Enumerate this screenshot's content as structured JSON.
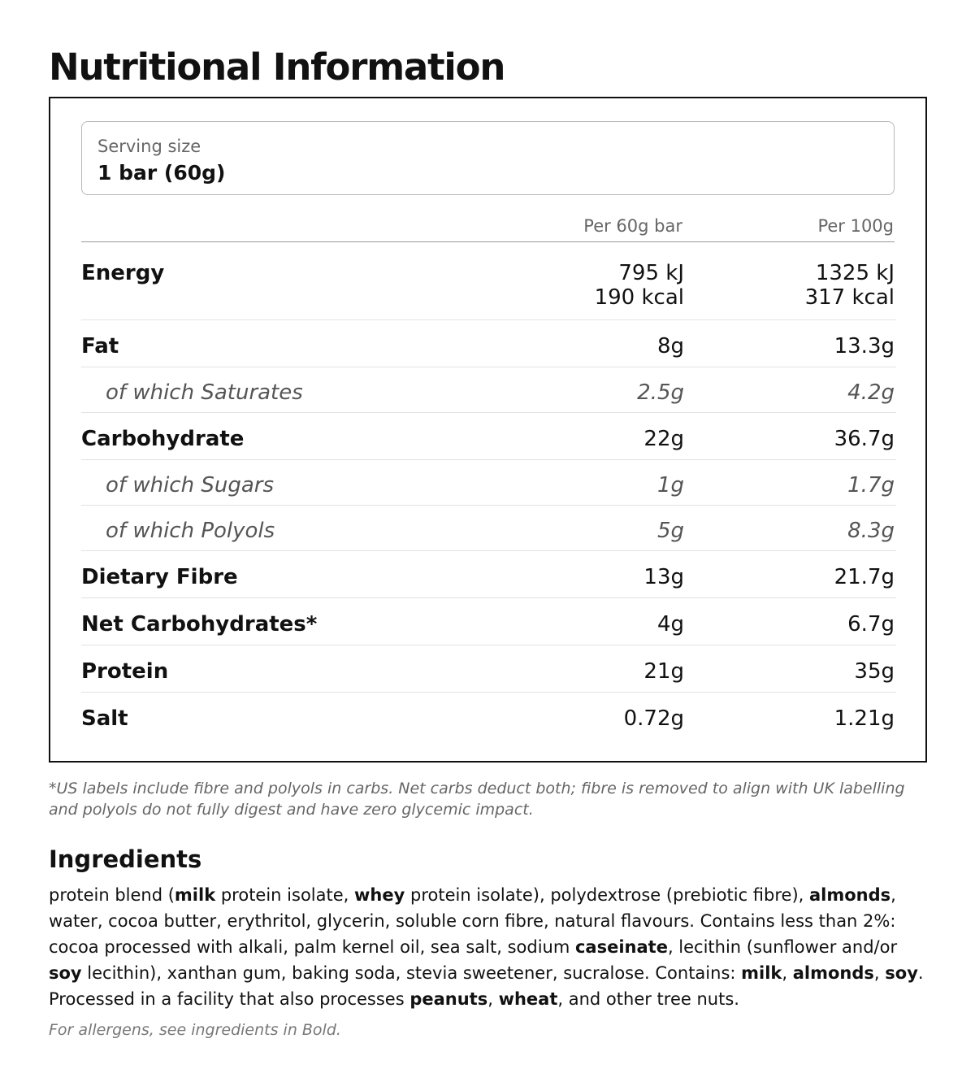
{
  "title": "Nutritional Information",
  "serving": {
    "label": "Serving size",
    "value": "1 bar (60g)"
  },
  "columns": {
    "per_serving": "Per 60g bar",
    "per_100g": "Per 100g"
  },
  "rows": [
    {
      "name": "Energy",
      "v1": "795 kJ\n190 kcal",
      "v2": "1325 kJ\n317 kcal",
      "sub": false
    },
    {
      "name": "Fat",
      "v1": "8g",
      "v2": "13.3g",
      "sub": false
    },
    {
      "name": "of which Saturates",
      "v1": "2.5g",
      "v2": "4.2g",
      "sub": true
    },
    {
      "name": "Carbohydrate",
      "v1": "22g",
      "v2": "36.7g",
      "sub": false
    },
    {
      "name": "of which Sugars",
      "v1": "1g",
      "v2": "1.7g",
      "sub": true
    },
    {
      "name": "of which Polyols",
      "v1": "5g",
      "v2": "8.3g",
      "sub": true
    },
    {
      "name": "Dietary Fibre",
      "v1": "13g",
      "v2": "21.7g",
      "sub": false
    },
    {
      "name": "Net Carbohydrates*",
      "v1": "4g",
      "v2": "6.7g",
      "sub": false
    },
    {
      "name": "Protein",
      "v1": "21g",
      "v2": "35g",
      "sub": false
    },
    {
      "name": "Salt",
      "v1": "0.72g",
      "v2": "1.21g",
      "sub": false
    }
  ],
  "footnote": "*US labels include fibre and polyols in carbs. Net carbs deduct both; fibre is removed to align with UK labelling and polyols do not fully digest and have zero glycemic impact.",
  "ingredients": {
    "title": "Ingredients",
    "segments": [
      {
        "t": "protein blend (",
        "b": false
      },
      {
        "t": "milk",
        "b": true
      },
      {
        "t": " protein isolate, ",
        "b": false
      },
      {
        "t": "whey",
        "b": true
      },
      {
        "t": " protein isolate), polydextrose (prebiotic fibre), ",
        "b": false
      },
      {
        "t": "almonds",
        "b": true
      },
      {
        "t": ", water, cocoa butter, erythritol, glycerin, soluble corn fibre, natural flavours. Contains less than 2%: cocoa processed with alkali, palm kernel oil, sea salt, sodium ",
        "b": false
      },
      {
        "t": "caseinate",
        "b": true
      },
      {
        "t": ", lecithin (sunflower and/or ",
        "b": false
      },
      {
        "t": "soy",
        "b": true
      },
      {
        "t": " lecithin), xanthan gum, baking soda, stevia sweetener, sucralose. Contains: ",
        "b": false
      },
      {
        "t": "milk",
        "b": true
      },
      {
        "t": ", ",
        "b": false
      },
      {
        "t": "almonds",
        "b": true
      },
      {
        "t": ", ",
        "b": false
      },
      {
        "t": "soy",
        "b": true
      },
      {
        "t": ". Processed in a facility that also processes ",
        "b": false
      },
      {
        "t": "peanuts",
        "b": true
      },
      {
        "t": ", ",
        "b": false
      },
      {
        "t": "wheat",
        "b": true
      },
      {
        "t": ", and other tree nuts.",
        "b": false
      }
    ],
    "allergen_note": "For allergens, see ingredients in Bold."
  }
}
